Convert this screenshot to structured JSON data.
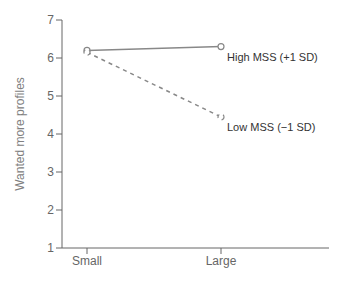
{
  "chart_data": {
    "type": "line",
    "ylabel": "Wanted more profiles",
    "categories": [
      "Small",
      "Large"
    ],
    "series": [
      {
        "name": "High MSS (+1 SD)",
        "color": "#888888",
        "values": [
          6.2,
          6.3
        ],
        "line_style": "solid",
        "marker": "circle"
      },
      {
        "name": "Low MSS (−1 SD)",
        "color": "#888888",
        "values": [
          6.15,
          4.45
        ],
        "line_style": "dashed",
        "marker": "circle"
      }
    ],
    "ylim": [
      1,
      7
    ],
    "yticks": [
      1,
      2,
      3,
      4,
      5,
      6,
      7
    ],
    "grid": false
  }
}
